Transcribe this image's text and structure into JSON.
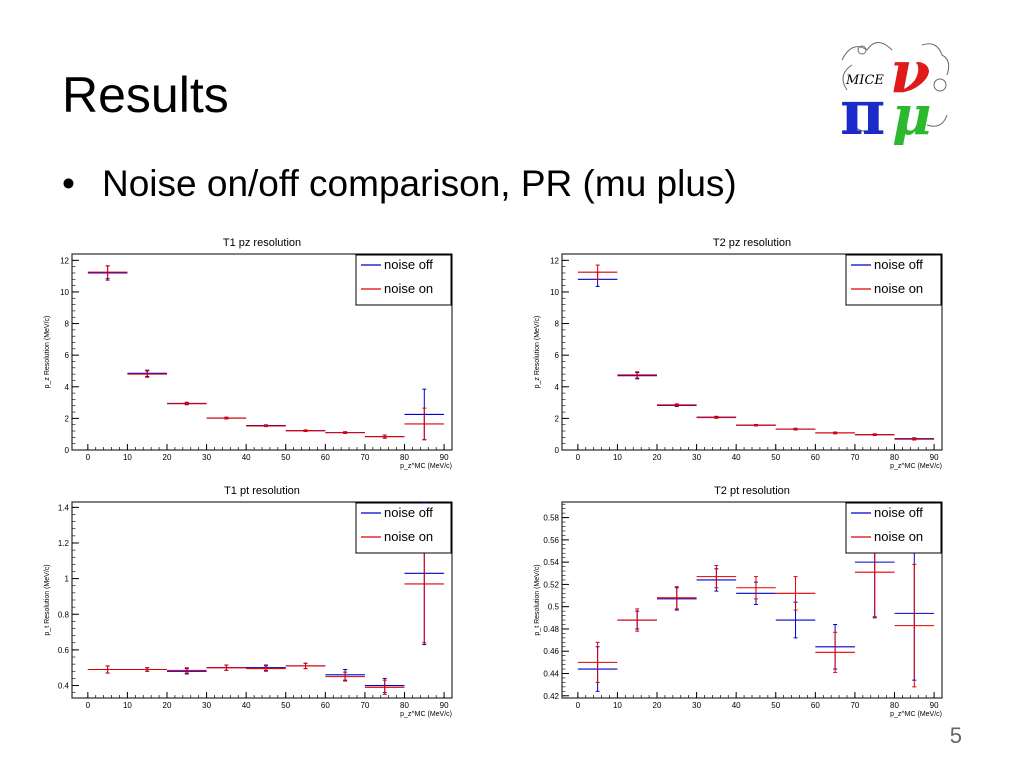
{
  "slide": {
    "title": "Results",
    "bullet": "Noise on/off comparison, PR (mu plus)",
    "page_number": "5",
    "logo_text": "MICE"
  },
  "colors": {
    "noise_off": "#0000cc",
    "noise_on": "#e00000",
    "axis": "#000000"
  },
  "chart_data": [
    {
      "type": "scatter",
      "title": "T1 pz resolution",
      "xlabel": "p_z^MC (MeV/c)",
      "ylabel": "p_z Resolution (MeV/c)",
      "xlim": [
        -4,
        92
      ],
      "ylim": [
        0,
        12.4
      ],
      "xticks": [
        0,
        10,
        20,
        30,
        40,
        50,
        60,
        70,
        80,
        90
      ],
      "yticks": [
        0,
        2,
        4,
        6,
        8,
        10,
        12
      ],
      "ytick_labels": [
        "0",
        "2",
        "4",
        "6",
        "8",
        "10",
        "12"
      ],
      "legend": [
        "noise off",
        "noise on"
      ],
      "series": [
        {
          "name": "noise off",
          "x": [
            5,
            15,
            25,
            35,
            45,
            55,
            65,
            75,
            85
          ],
          "y": [
            11.2,
            4.85,
            2.95,
            2.02,
            1.55,
            1.22,
            1.1,
            0.85,
            2.25
          ],
          "yerr": [
            0.45,
            0.2,
            0.07,
            0.05,
            0.04,
            0.05,
            0.05,
            0.1,
            1.6
          ]
        },
        {
          "name": "noise on",
          "x": [
            5,
            15,
            25,
            35,
            45,
            55,
            65,
            75,
            85
          ],
          "y": [
            11.25,
            4.8,
            2.93,
            2.02,
            1.52,
            1.22,
            1.1,
            0.85,
            1.65
          ],
          "yerr": [
            0.4,
            0.2,
            0.07,
            0.05,
            0.04,
            0.05,
            0.05,
            0.1,
            1.0
          ]
        }
      ]
    },
    {
      "type": "scatter",
      "title": "T2 pz resolution",
      "xlabel": "p_z^MC (MeV/c)",
      "ylabel": "p_z Resolution (MeV/c)",
      "xlim": [
        -4,
        92
      ],
      "ylim": [
        0,
        12.4
      ],
      "xticks": [
        0,
        10,
        20,
        30,
        40,
        50,
        60,
        70,
        80,
        90
      ],
      "yticks": [
        0,
        2,
        4,
        6,
        8,
        10,
        12
      ],
      "ytick_labels": [
        "0",
        "2",
        "4",
        "6",
        "8",
        "10",
        "12"
      ],
      "legend": [
        "noise off",
        "noise on"
      ],
      "series": [
        {
          "name": "noise off",
          "x": [
            5,
            15,
            25,
            35,
            45,
            55,
            65,
            75,
            85
          ],
          "y": [
            10.8,
            4.7,
            2.82,
            2.08,
            1.57,
            1.32,
            1.08,
            0.97,
            0.72
          ],
          "yerr": [
            0.45,
            0.2,
            0.07,
            0.05,
            0.04,
            0.05,
            0.05,
            0.05,
            0.05
          ]
        },
        {
          "name": "noise on",
          "x": [
            5,
            15,
            25,
            35,
            45,
            55,
            65,
            75,
            85
          ],
          "y": [
            11.25,
            4.75,
            2.85,
            2.05,
            1.57,
            1.32,
            1.08,
            0.97,
            0.68
          ],
          "yerr": [
            0.45,
            0.2,
            0.07,
            0.05,
            0.04,
            0.05,
            0.05,
            0.05,
            0.05
          ]
        }
      ]
    },
    {
      "type": "scatter",
      "title": "T1 pt resolution",
      "xlabel": "p_z^MC (MeV/c)",
      "ylabel": "p_t Resolution (MeV/c)",
      "xlim": [
        -4,
        92
      ],
      "ylim": [
        0.33,
        1.43
      ],
      "xticks": [
        0,
        10,
        20,
        30,
        40,
        50,
        60,
        70,
        80,
        90
      ],
      "yticks": [
        0.4,
        0.6,
        0.8,
        1.0,
        1.2,
        1.4
      ],
      "ytick_labels": [
        "0.4",
        "0.6",
        "0.8",
        "1",
        "1.2",
        "1.4"
      ],
      "legend": [
        "noise off",
        "noise on"
      ],
      "series": [
        {
          "name": "noise off",
          "x": [
            5,
            15,
            25,
            35,
            45,
            55,
            65,
            75,
            85
          ],
          "y": [
            0.49,
            0.49,
            0.48,
            0.5,
            0.5,
            0.51,
            0.46,
            0.4,
            1.03
          ],
          "yerr": [
            0.02,
            0.01,
            0.015,
            0.015,
            0.015,
            0.015,
            0.03,
            0.04,
            0.4
          ]
        },
        {
          "name": "noise on",
          "x": [
            5,
            15,
            25,
            35,
            45,
            55,
            65,
            75,
            85
          ],
          "y": [
            0.49,
            0.49,
            0.485,
            0.5,
            0.495,
            0.51,
            0.45,
            0.39,
            0.97
          ],
          "yerr": [
            0.02,
            0.01,
            0.015,
            0.015,
            0.015,
            0.015,
            0.025,
            0.04,
            0.33
          ]
        }
      ]
    },
    {
      "type": "scatter",
      "title": "T2 pt resolution",
      "xlabel": "p_z^MC (MeV/c)",
      "ylabel": "p_t Resolution (MeV/c)",
      "xlim": [
        -4,
        92
      ],
      "ylim": [
        0.418,
        0.594
      ],
      "xticks": [
        0,
        10,
        20,
        30,
        40,
        50,
        60,
        70,
        80,
        90
      ],
      "yticks": [
        0.42,
        0.44,
        0.46,
        0.48,
        0.5,
        0.52,
        0.54,
        0.56,
        0.58
      ],
      "ytick_labels": [
        "0.42",
        "0.44",
        "0.46",
        "0.48",
        "0.5",
        "0.52",
        "0.54",
        "0.56",
        "0.58"
      ],
      "legend": [
        "noise off",
        "noise on"
      ],
      "series": [
        {
          "name": "noise off",
          "x": [
            5,
            15,
            25,
            35,
            45,
            55,
            65,
            75,
            85
          ],
          "y": [
            0.444,
            0.488,
            0.507,
            0.524,
            0.512,
            0.488,
            0.464,
            0.54,
            0.494
          ],
          "yerr": [
            0.02,
            0.008,
            0.01,
            0.01,
            0.01,
            0.016,
            0.02,
            0.05,
            0.06
          ]
        },
        {
          "name": "noise on",
          "x": [
            5,
            15,
            25,
            35,
            45,
            55,
            65,
            75,
            85
          ],
          "y": [
            0.45,
            0.488,
            0.508,
            0.527,
            0.517,
            0.512,
            0.459,
            0.531,
            0.483
          ],
          "yerr": [
            0.018,
            0.01,
            0.01,
            0.01,
            0.01,
            0.015,
            0.018,
            0.04,
            0.055
          ]
        }
      ]
    }
  ]
}
